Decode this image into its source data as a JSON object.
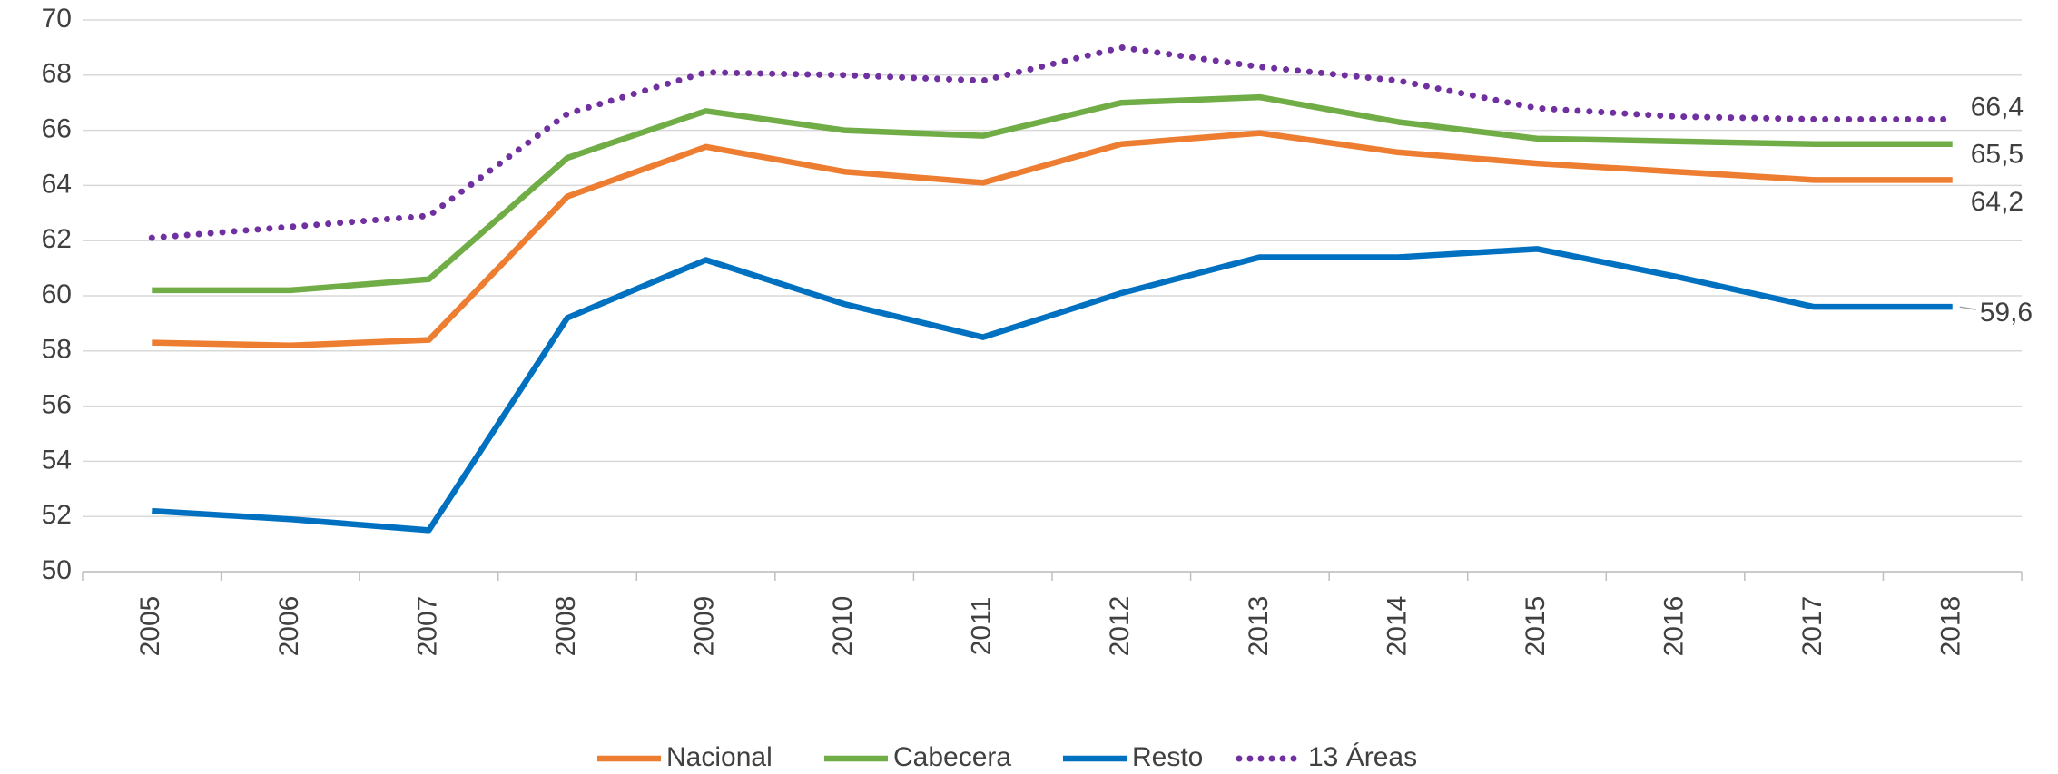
{
  "chart_data": {
    "type": "line",
    "categories": [
      "2005",
      "2006",
      "2007",
      "2008",
      "2009",
      "2010",
      "2011",
      "2012",
      "2013",
      "2014",
      "2015",
      "2016",
      "2017",
      "2018"
    ],
    "series": [
      {
        "name": "Nacional",
        "color": "#ed7d31",
        "values": [
          58.3,
          58.2,
          58.4,
          63.6,
          65.4,
          64.5,
          64.1,
          65.5,
          65.9,
          65.2,
          64.8,
          64.5,
          64.2,
          64.2
        ],
        "value_labels": [
          null,
          null,
          null,
          null,
          null,
          null,
          null,
          null,
          null,
          null,
          null,
          null,
          null,
          "64,2"
        ]
      },
      {
        "name": "Cabecera",
        "color": "#70ad47",
        "values": [
          60.2,
          60.2,
          60.6,
          65.0,
          66.7,
          66.0,
          65.8,
          67.0,
          67.2,
          66.3,
          65.7,
          65.6,
          65.5,
          65.5
        ],
        "value_labels": [
          null,
          null,
          null,
          null,
          null,
          null,
          null,
          null,
          null,
          null,
          null,
          null,
          null,
          "65,5"
        ]
      },
      {
        "name": "Resto",
        "color": "#0070c0",
        "values": [
          52.2,
          51.9,
          51.5,
          59.2,
          61.3,
          59.7,
          58.5,
          60.1,
          61.4,
          61.4,
          61.7,
          60.7,
          59.6,
          59.6
        ],
        "value_labels": [
          null,
          null,
          null,
          null,
          null,
          null,
          null,
          null,
          null,
          null,
          null,
          null,
          null,
          "59,6"
        ]
      },
      {
        "name": "13 Áreas",
        "color": "#7030a0",
        "dotted": true,
        "values": [
          62.1,
          62.5,
          62.9,
          66.6,
          68.1,
          68.0,
          67.8,
          69.0,
          68.3,
          67.8,
          66.8,
          66.5,
          66.4,
          66.4
        ],
        "value_labels": [
          null,
          null,
          null,
          null,
          null,
          null,
          null,
          null,
          null,
          null,
          null,
          null,
          null,
          "66,4"
        ]
      }
    ],
    "ylim": [
      50,
      70
    ],
    "yticks": [
      50,
      52,
      54,
      56,
      58,
      60,
      62,
      64,
      66,
      68,
      70
    ],
    "grid": true,
    "legend": "bottom"
  }
}
